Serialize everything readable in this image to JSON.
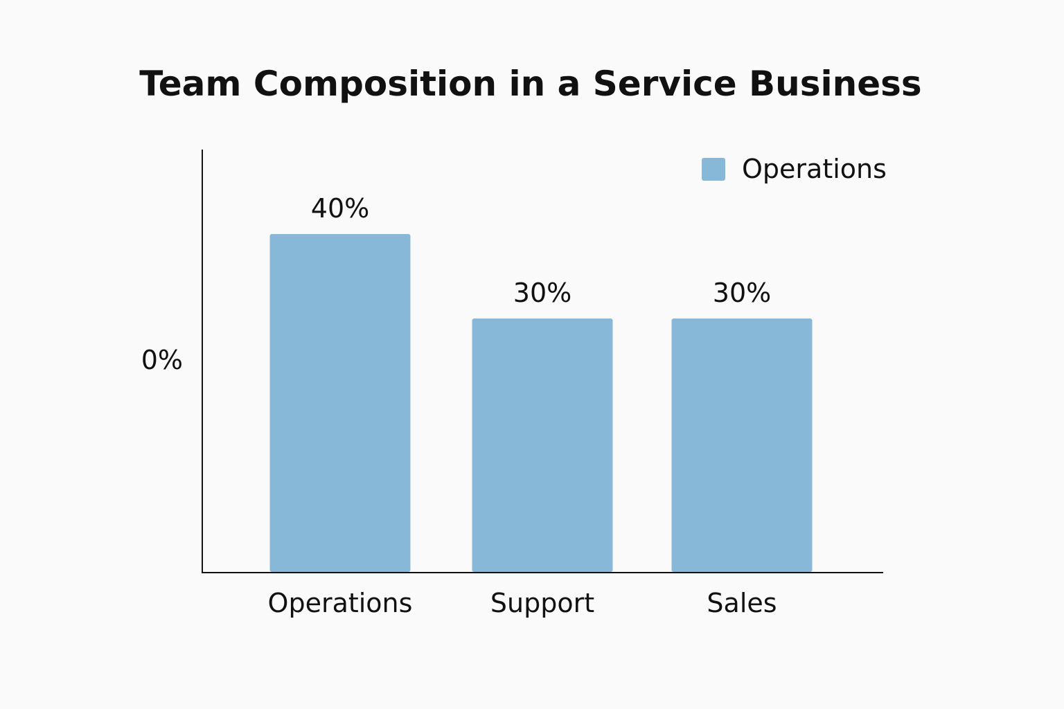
{
  "chart_data": {
    "type": "bar",
    "title": "Team Composition in a Service Business",
    "categories": [
      "Operations",
      "Support",
      "Sales"
    ],
    "series": [
      {
        "name": "Operations",
        "values": [
          40,
          30,
          30
        ],
        "labels": [
          "40%",
          "30%",
          "30%"
        ],
        "color": "#88b8d7"
      }
    ],
    "y_tick_labels": [
      "0%"
    ],
    "xlabel": "",
    "ylabel": "",
    "legend": "top-right",
    "grid": false
  }
}
